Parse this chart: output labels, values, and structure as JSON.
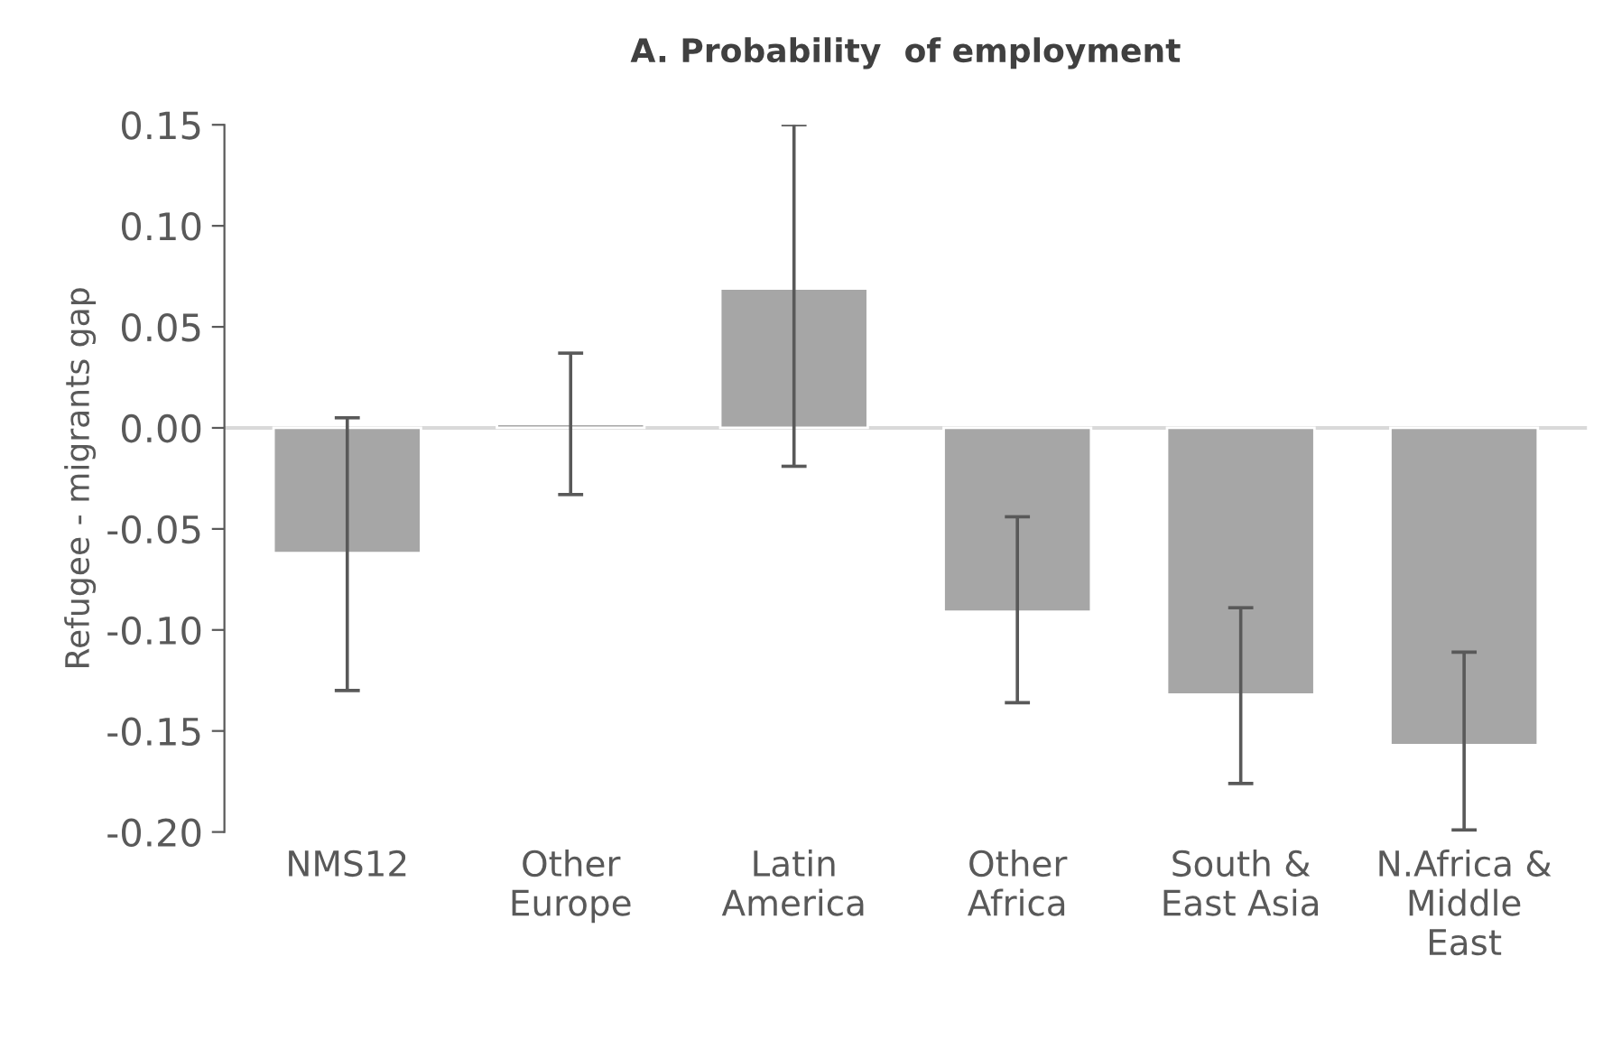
{
  "chart_data": {
    "type": "bar",
    "title": "A. Probability  of employment",
    "ylabel": "Refugee - migrants gap",
    "categories": [
      "NMS12",
      "Other\nEurope",
      "Latin\nAmerica",
      "Other\nAfrica",
      "South &\nEast Asia",
      "N.Africa &\nMiddle\nEast"
    ],
    "values": [
      -0.062,
      0.002,
      0.069,
      -0.091,
      -0.132,
      -0.157
    ],
    "errors": [
      [
        -0.13,
        0.005
      ],
      [
        -0.033,
        0.037
      ],
      [
        -0.019,
        0.15
      ],
      [
        -0.136,
        -0.044
      ],
      [
        -0.176,
        -0.089
      ],
      [
        -0.199,
        -0.111
      ]
    ],
    "color": "#a6a6a6",
    "ylim": [
      -0.2,
      0.15
    ],
    "yticks": [
      {
        "value": -0.2,
        "label": "-0.20"
      },
      {
        "value": -0.15,
        "label": "-0.15"
      },
      {
        "value": -0.1,
        "label": "-0.10"
      },
      {
        "value": -0.05,
        "label": "-0.05"
      },
      {
        "value": 0,
        "label": "0.00"
      },
      {
        "value": 0.05,
        "label": "0.05"
      },
      {
        "value": 0.1,
        "label": "0.10"
      },
      {
        "value": 0.15,
        "label": "0.15"
      }
    ],
    "ref_lines": [
      {
        "axis": "y",
        "value": 0,
        "color": "#d9d9d9"
      }
    ],
    "grid": false
  }
}
